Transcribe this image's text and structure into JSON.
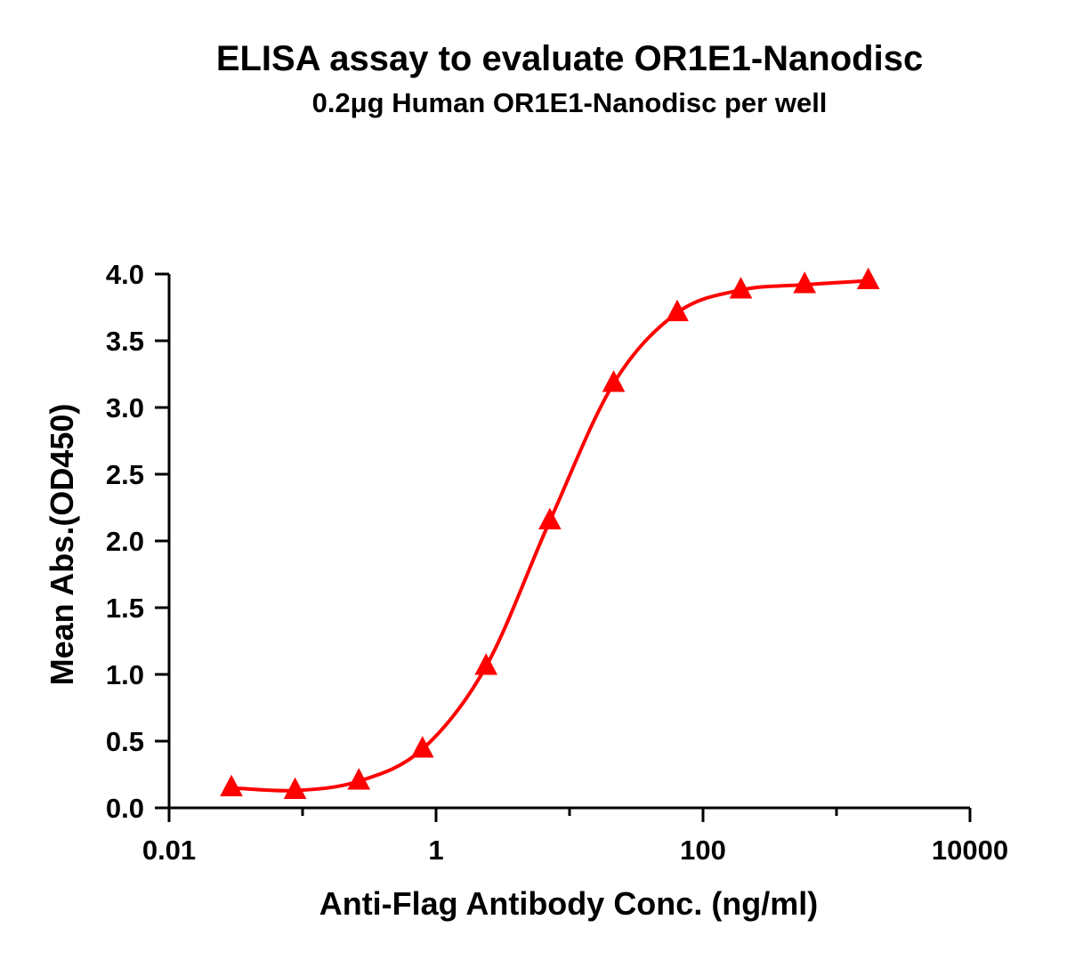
{
  "chart_data": {
    "type": "line",
    "title": "ELISA assay to evaluate OR1E1-Nanodisc",
    "subtitle": "0.2μg Human OR1E1-Nanodisc per well",
    "xlabel": "Anti-Flag Antibody Conc. (ng/ml)",
    "ylabel": "Mean Abs.(OD450)",
    "x_scale": "log",
    "xlim": [
      0.01,
      10000
    ],
    "ylim": [
      0,
      4.0
    ],
    "x_ticks": [
      0.01,
      1,
      100,
      10000
    ],
    "x_tick_labels": [
      "0.01",
      "1",
      "100",
      "10000"
    ],
    "y_ticks": [
      0,
      0.5,
      1.0,
      1.5,
      2.0,
      2.5,
      3.0,
      3.5,
      4.0
    ],
    "y_tick_labels": [
      "0.0",
      "0.5",
      "1.0",
      "1.5",
      "2.0",
      "2.5",
      "3.0",
      "3.5",
      "4.0"
    ],
    "grid": false,
    "series": [
      {
        "marker": "triangle",
        "color": "#ff0000",
        "fit": "4PL sigmoid",
        "x": [
          0.0293,
          0.0879,
          0.264,
          0.791,
          2.37,
          7.12,
          21.4,
          64.1,
          192,
          577,
          1730
        ],
        "y": [
          0.15,
          0.13,
          0.2,
          0.44,
          1.06,
          2.15,
          3.18,
          3.71,
          3.88,
          3.92,
          3.95
        ]
      }
    ]
  }
}
